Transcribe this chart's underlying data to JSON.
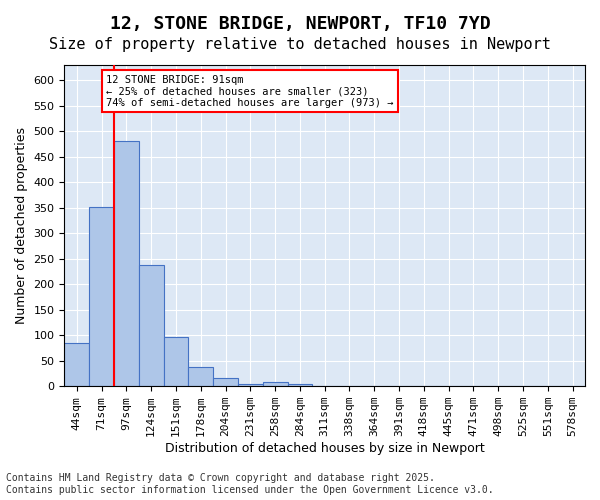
{
  "title": "12, STONE BRIDGE, NEWPORT, TF10 7YD",
  "subtitle": "Size of property relative to detached houses in Newport",
  "xlabel": "Distribution of detached houses by size in Newport",
  "ylabel": "Number of detached properties",
  "bar_values": [
    85,
    352,
    480,
    237,
    96,
    37,
    17,
    5,
    8,
    5,
    0,
    0,
    0,
    0,
    0,
    0,
    0,
    0,
    0,
    0,
    0
  ],
  "bar_labels": [
    "44sqm",
    "71sqm",
    "97sqm",
    "124sqm",
    "151sqm",
    "178sqm",
    "204sqm",
    "231sqm",
    "258sqm",
    "284sqm",
    "311sqm",
    "338sqm",
    "364sqm",
    "391sqm",
    "418sqm",
    "445sqm",
    "471sqm",
    "498sqm",
    "525sqm",
    "551sqm",
    "578sqm"
  ],
  "bar_color": "#aec6e8",
  "bar_edge_color": "#4472c4",
  "vline_color": "red",
  "annotation_text": "12 STONE BRIDGE: 91sqm\n← 25% of detached houses are smaller (323)\n74% of semi-detached houses are larger (973) →",
  "annotation_box_color": "white",
  "annotation_box_edge_color": "red",
  "ylim": [
    0,
    630
  ],
  "yticks": [
    0,
    50,
    100,
    150,
    200,
    250,
    300,
    350,
    400,
    450,
    500,
    550,
    600
  ],
  "background_color": "#dde8f5",
  "grid_color": "white",
  "footer_line1": "Contains HM Land Registry data © Crown copyright and database right 2025.",
  "footer_line2": "Contains public sector information licensed under the Open Government Licence v3.0.",
  "title_fontsize": 13,
  "subtitle_fontsize": 11,
  "label_fontsize": 9,
  "tick_fontsize": 8,
  "footer_fontsize": 7
}
